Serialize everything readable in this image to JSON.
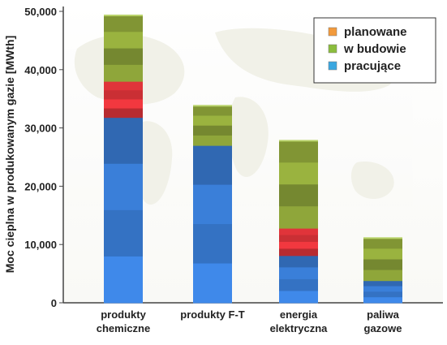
{
  "chart_data": {
    "type": "bar",
    "stacked": true,
    "title": "",
    "xlabel": "",
    "ylabel": "Moc cieplna  w produkowanym gazie [MWth]",
    "ylim": [
      0,
      50000
    ],
    "yticks": [
      0,
      10000,
      20000,
      30000,
      40000,
      50000
    ],
    "ytick_labels": [
      "0",
      "10,000",
      "20,000",
      "30,000",
      "40,000",
      "50,000"
    ],
    "grid": false,
    "legend_position": "top-right",
    "categories": [
      [
        "produkty",
        "chemiczne"
      ],
      [
        "produkty F-T"
      ],
      [
        "energia",
        "elektryczna"
      ],
      [
        "paliwa",
        "gazowe"
      ]
    ],
    "series": [
      {
        "name": "pracujące",
        "color": "#3a7fd9",
        "values": [
          31800,
          27000,
          8100,
          3800
        ]
      },
      {
        "name": "w budowie",
        "color": "#e0343a",
        "values": [
          6200,
          0,
          4700,
          0
        ]
      },
      {
        "name": "planowane",
        "color": "#8fa63a",
        "values": [
          11300,
          6800,
          15000,
          7300
        ]
      }
    ],
    "legend": [
      "planowane",
      "w budowie",
      "pracujące"
    ],
    "legend_colors": [
      "#f29a3c",
      "#8bbd3d",
      "#3aa7e0"
    ]
  }
}
